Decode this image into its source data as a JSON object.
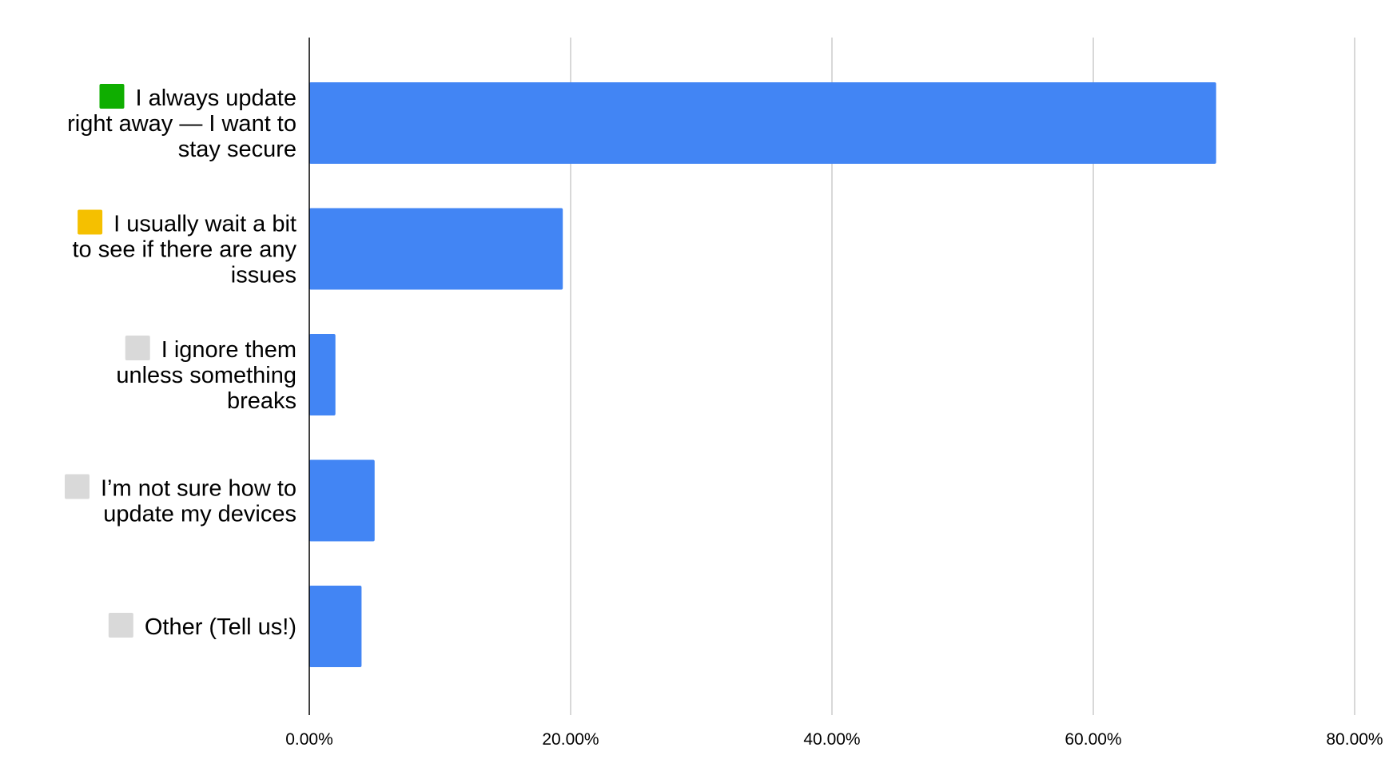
{
  "chart_data": {
    "type": "bar",
    "orientation": "horizontal",
    "categories": [
      "🟩 I always update right away — I want to stay secure",
      "🟨 I usually wait a bit to see if there are any issues",
      "⬜ I ignore them unless something breaks",
      "⬜ I’m not sure how to update my devices",
      "⬜ Other (Tell us!)"
    ],
    "category_lines": [
      [
        "I always update",
        "right away — I want to",
        "stay secure"
      ],
      [
        "I usually wait a bit",
        "to see if there are any",
        "issues"
      ],
      [
        "I ignore them",
        "unless something",
        "breaks"
      ],
      [
        "I’m not sure how to",
        "update my devices"
      ],
      [
        "Other (Tell us!)"
      ]
    ],
    "category_icons": [
      "green-square-icon",
      "yellow-square-icon",
      "white-square-icon",
      "white-square-icon",
      "white-square-icon"
    ],
    "icon_colors": [
      "#0fae00",
      "#f5c000",
      "#d9d9d9",
      "#d9d9d9",
      "#d9d9d9"
    ],
    "values": [
      69.4,
      19.4,
      2.0,
      5.0,
      4.0
    ],
    "xlim": [
      0,
      80
    ],
    "x_ticks": [
      0,
      20,
      40,
      60,
      80
    ],
    "x_tick_labels": [
      "0.00%",
      "20.00%",
      "40.00%",
      "60.00%",
      "80.00%"
    ],
    "title": "",
    "xlabel": "",
    "ylabel": "",
    "grid": true,
    "legend": "none",
    "bar_color": "#4285f4",
    "grid_color": "#cccccc",
    "axis_color": "#000000"
  }
}
